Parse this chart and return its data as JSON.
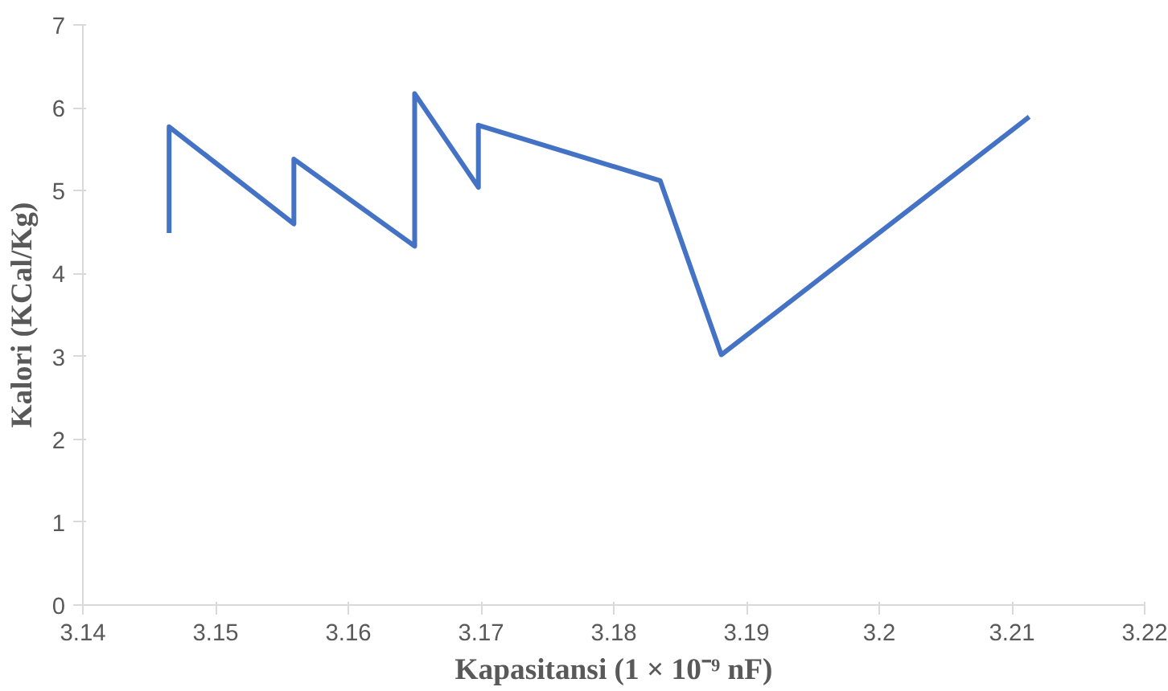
{
  "chart_data": {
    "type": "line",
    "xlabel": "Kapasitansi (1 × 10⁻⁹ nF)",
    "ylabel": "Kalori (KCal/Kg)",
    "x": [
      3.1465,
      3.1465,
      3.1559,
      3.1559,
      3.165,
      3.165,
      3.1698,
      3.1698,
      3.1835,
      3.1881,
      3.2113
    ],
    "series": [
      {
        "color": "#4472c4",
        "values": [
          4.49,
          5.77,
          4.6,
          5.38,
          4.33,
          6.17,
          5.04,
          5.79,
          5.12,
          3.02,
          5.89
        ]
      }
    ],
    "xlim": [
      3.14,
      3.22
    ],
    "xticks": [
      3.14,
      3.15,
      3.16,
      3.17,
      3.18,
      3.19,
      {
        "value": 3.2,
        "label": "3.2"
      },
      3.21,
      3.22
    ],
    "ylim": [
      0,
      7
    ],
    "yticks": [
      0,
      1,
      2,
      3,
      4,
      5,
      6,
      7
    ],
    "grid": false,
    "marker": "none",
    "line_style": "solid"
  }
}
